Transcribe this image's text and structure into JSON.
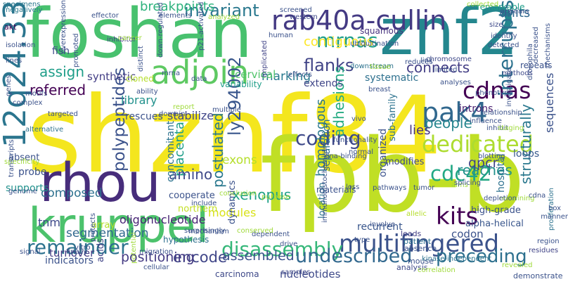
{
  "words": [
    {
      "text": "shznf84",
      "color": "#f4e61e",
      "rotated": false
    },
    {
      "text": "foshan",
      "color": "#48c16e",
      "rotated": false
    },
    {
      "text": "fpb-b",
      "color": "#c0df25",
      "rotated": false
    },
    {
      "text": "znf2",
      "color": "#24878e",
      "rotated": false
    },
    {
      "text": "kruppel",
      "color": "#4cc26c",
      "rotated": false
    },
    {
      "text": "rhou",
      "color": "#472d7b",
      "rotated": false
    },
    {
      "text": "12q24.33",
      "color": "#2b758e",
      "rotated": true
    },
    {
      "text": "adjoin",
      "color": "#5ec962",
      "rotated": false
    },
    {
      "text": "rab40a-cullin",
      "color": "#443a83",
      "rotated": false
    },
    {
      "text": "multifingered",
      "color": "#3b528b",
      "rotated": false
    },
    {
      "text": "pak4",
      "color": "#31688e",
      "rotated": false
    },
    {
      "text": "cdnas",
      "color": "#440154",
      "rotated": false
    },
    {
      "text": "interrupts",
      "color": "#2c728e",
      "rotated": true
    },
    {
      "text": "dedicated",
      "color": "#addc30",
      "rotated": false
    },
    {
      "text": "coding",
      "color": "#3e4989",
      "rotated": false
    },
    {
      "text": "disassembly",
      "color": "#35b779",
      "rotated": false
    },
    {
      "text": "undescribed",
      "color": "#31688e",
      "rotated": false
    },
    {
      "text": "remainder",
      "color": "#2c728e",
      "rotated": false
    },
    {
      "text": "cdc42",
      "color": "#22a884",
      "rotated": false
    },
    {
      "text": "invariant",
      "color": "#2a788e",
      "rotated": false
    },
    {
      "text": "mrnas",
      "color": "#1f9e89",
      "rotated": false
    },
    {
      "text": "flanks",
      "color": "#414487",
      "rotated": false
    },
    {
      "text": "breakpoints",
      "color": "#2db27d",
      "rotated": false
    },
    {
      "text": "contiguous",
      "color": "#fde725",
      "rotated": false
    },
    {
      "text": "ly294002",
      "color": "#39568c",
      "rotated": true
    },
    {
      "text": "postulated",
      "color": "#2a788e",
      "rotated": true
    },
    {
      "text": "placenta",
      "color": "#1f9e89",
      "rotated": true
    },
    {
      "text": "polypeptides",
      "color": "#3b528b",
      "rotated": true
    },
    {
      "text": "homologous",
      "color": "#2a788e",
      "rotated": true
    },
    {
      "text": "adhesions",
      "color": "#25ab82",
      "rotated": true
    },
    {
      "text": "structurally",
      "color": "#2a788e",
      "rotated": true
    },
    {
      "text": "amino",
      "color": "#3e4989",
      "rotated": false
    },
    {
      "text": "xenopus",
      "color": "#1fa187",
      "rotated": false
    },
    {
      "text": "exons",
      "color": "#b5de2b",
      "rotated": false
    },
    {
      "text": "kits",
      "color": "#440154",
      "rotated": false
    },
    {
      "text": "assign",
      "color": "#1f9e89",
      "rotated": false
    },
    {
      "text": "connects",
      "color": "#433e85",
      "rotated": false
    },
    {
      "text": "people",
      "color": "#25858e",
      "rotated": false
    },
    {
      "text": "reaches",
      "color": "#21918c",
      "rotated": false
    },
    {
      "text": "units",
      "color": "#31688e",
      "rotated": false
    },
    {
      "text": "tnm",
      "color": "#3e4989",
      "rotated": false
    },
    {
      "text": "encode",
      "color": "#404688",
      "rotated": false
    },
    {
      "text": "assembled",
      "color": "#3b528b",
      "rotated": false
    },
    {
      "text": "preceding",
      "color": "#2d708e",
      "rotated": false
    },
    {
      "text": "marking",
      "color": "#29798e",
      "rotated": false
    },
    {
      "text": "segmentation",
      "color": "#31688e",
      "rotated": false
    },
    {
      "text": "positioning",
      "color": "#443a83",
      "rotated": false
    },
    {
      "text": "composed",
      "color": "#2d708e",
      "rotated": false
    },
    {
      "text": "modules",
      "color": "#d8e219",
      "rotated": false
    },
    {
      "text": "qpcr",
      "color": "#414487",
      "rotated": false
    },
    {
      "text": "lies",
      "color": "#46327e",
      "rotated": false
    },
    {
      "text": "loops",
      "color": "#38598c",
      "rotated": false
    },
    {
      "text": "codon",
      "color": "#3b528b",
      "rotated": false
    },
    {
      "text": "hospital",
      "color": "#2d708e",
      "rotated": true
    },
    {
      "text": "cervical",
      "color": "#50c46a",
      "rotated": false
    },
    {
      "text": "referred",
      "color": "#440154",
      "rotated": false
    },
    {
      "text": "introns",
      "color": "#481f70",
      "rotated": false
    },
    {
      "text": "sequences",
      "color": "#3b528b",
      "rotated": true
    },
    {
      "text": "organized",
      "color": "#3b528b",
      "rotated": true
    },
    {
      "text": "separation",
      "color": "#2d708e",
      "rotated": true
    },
    {
      "text": "location",
      "color": "#2c728e",
      "rotated": true
    },
    {
      "text": "dynamics",
      "color": "#3b528b",
      "rotated": true
    },
    {
      "text": "library",
      "color": "#21918c",
      "rotated": false
    },
    {
      "text": "stabilize",
      "color": "#404688",
      "rotated": false
    },
    {
      "text": "extends",
      "color": "#404688",
      "rotated": false
    },
    {
      "text": "systematic",
      "color": "#2d708e",
      "rotated": false
    },
    {
      "text": "synthetic",
      "color": "#433e85",
      "rotated": false
    },
    {
      "text": "rescues",
      "color": "#3b528b",
      "rotated": false
    },
    {
      "text": "variability",
      "color": "#1f9e89",
      "rotated": false
    },
    {
      "text": "oligonucleotide",
      "color": "#482475",
      "rotated": false
    },
    {
      "text": "recurrent",
      "color": "#39568c",
      "rotated": false
    },
    {
      "text": "alpha-helical",
      "color": "#39568c",
      "rotated": false
    },
    {
      "text": "high-grade",
      "color": "#3b528b",
      "rotated": false
    },
    {
      "text": "modifies",
      "color": "#3e4989",
      "rotated": false
    },
    {
      "text": "nucleotides",
      "color": "#3e4989",
      "rotated": false
    },
    {
      "text": "turnover",
      "color": "#443a83",
      "rotated": false
    },
    {
      "text": "indicators",
      "color": "#3b528b",
      "rotated": false
    },
    {
      "text": "probe",
      "color": "#3b528b",
      "rotated": false
    },
    {
      "text": "fish",
      "color": "#3e4989",
      "rotated": false
    },
    {
      "text": "absent",
      "color": "#3b528b",
      "rotated": false
    },
    {
      "text": "supports",
      "color": "#21918c",
      "rotated": false
    },
    {
      "text": "remarkable",
      "color": "#1f9e89",
      "rotated": false
    },
    {
      "text": "repeats",
      "color": "#3b528b",
      "rotated": false
    },
    {
      "text": "squamous",
      "color": "#46327e",
      "rotated": false
    },
    {
      "text": "materials",
      "color": "#3b528b",
      "rotated": false
    },
    {
      "text": "cooperate",
      "color": "#3b528b",
      "rotated": false
    },
    {
      "text": "concomitant",
      "color": "#2c728e",
      "rotated": true
    },
    {
      "text": "sub-family",
      "color": "#2c728e",
      "rotated": true
    },
    {
      "text": "northern",
      "color": "#c2df23",
      "rotated": false
    },
    {
      "text": "cloned",
      "color": "#b5de2b",
      "rotated": false
    },
    {
      "text": "acids",
      "color": "#414487",
      "rotated": true
    },
    {
      "text": "array",
      "color": "#b5de2b",
      "rotated": false
    },
    {
      "text": "hypothesis",
      "color": "#2d708e",
      "rotated": false
    },
    {
      "text": "carcinoma",
      "color": "#3e4989",
      "rotated": false
    },
    {
      "text": "samples",
      "color": "#3e4989",
      "rotated": false
    },
    {
      "text": "demonstrate",
      "color": "#3b528b",
      "rotated": false
    },
    {
      "text": "residues",
      "color": "#414487",
      "rotated": false
    },
    {
      "text": "region",
      "color": "#3b528b",
      "rotated": false
    },
    {
      "text": "analysis",
      "color": "#3e4989",
      "rotated": false
    },
    {
      "text": "patient",
      "color": "#2d708e",
      "rotated": false
    },
    {
      "text": "mouse",
      "color": "#3b528b",
      "rotated": false
    },
    {
      "text": "leads",
      "color": "#433e85",
      "rotated": false
    },
    {
      "text": "absence",
      "color": "#3b528b",
      "rotated": false
    },
    {
      "text": "allelic",
      "color": "#b5de2b",
      "rotated": false
    },
    {
      "text": "kinase-independent",
      "color": "#2c728e",
      "rotated": false
    },
    {
      "text": "correlation",
      "color": "#9fda3a",
      "rotated": false
    },
    {
      "text": "proliferation",
      "color": "#2c728e",
      "rotated": true
    },
    {
      "text": "akt",
      "color": "#440154",
      "rotated": false
    },
    {
      "text": "inhibitor",
      "color": "#433e85",
      "rotated": false
    },
    {
      "text": "isolation",
      "color": "#3b528b",
      "rotated": false
    },
    {
      "text": "lines",
      "color": "#3b528b",
      "rotated": false
    },
    {
      "text": "specimens",
      "color": "#2a788e",
      "rotated": false
    },
    {
      "text": "negatively",
      "color": "#29798e",
      "rotated": false
    },
    {
      "text": "effector",
      "color": "#3b528b",
      "rotated": false
    },
    {
      "text": "elements",
      "color": "#3b528b",
      "rotated": false
    },
    {
      "text": "screened",
      "color": "#3b528b",
      "rotated": false
    },
    {
      "text": "western",
      "color": "#3e4989",
      "rotated": false
    },
    {
      "text": "human",
      "color": "#3b528b",
      "rotated": false
    },
    {
      "text": "implicated",
      "color": "#414487",
      "rotated": true
    },
    {
      "text": "ubiquitination",
      "color": "#3b528b",
      "rotated": false
    },
    {
      "text": "downstream",
      "color": "#2c728e",
      "rotated": false
    },
    {
      "text": "tissue",
      "color": "#9fda3a",
      "rotated": false
    },
    {
      "text": "reduces",
      "color": "#3b528b",
      "rotated": false
    },
    {
      "text": "size",
      "color": "#3e4989",
      "rotated": false
    },
    {
      "text": "identify",
      "color": "#3b528b",
      "rotated": false
    },
    {
      "text": "detected",
      "color": "#3b528b",
      "rotated": false
    },
    {
      "text": "appears",
      "color": "#3b528b",
      "rotated": false
    },
    {
      "text": "chromosome",
      "color": "#3e4989",
      "rotated": false
    },
    {
      "text": "decreased",
      "color": "#3b528b",
      "rotated": true
    },
    {
      "text": "drosophila",
      "color": "#3b528b",
      "rotated": true
    },
    {
      "text": "methods",
      "color": "#3e4989",
      "rotated": false
    },
    {
      "text": "mechanisms",
      "color": "#3b528b",
      "rotated": true
    },
    {
      "text": "link",
      "color": "#3b528b",
      "rotated": false
    },
    {
      "text": "genes",
      "color": "#3b528b",
      "rotated": true
    },
    {
      "text": "motifs",
      "color": "#3b528b",
      "rotated": false
    },
    {
      "text": "complex",
      "color": "#3b528b",
      "rotated": false
    },
    {
      "text": "targeted",
      "color": "#3b528b",
      "rotated": false
    },
    {
      "text": "alternative",
      "color": "#2c728e",
      "rotated": false
    },
    {
      "text": "specificity",
      "color": "#9fda3a",
      "rotated": false
    },
    {
      "text": "transcripts",
      "color": "#3b528b",
      "rotated": true
    },
    {
      "text": "genome",
      "color": "#3b528b",
      "rotated": false
    },
    {
      "text": "signal",
      "color": "#3b528b",
      "rotated": false
    },
    {
      "text": "finally",
      "color": "#3b528b",
      "rotated": false
    },
    {
      "text": "vitro",
      "color": "#3b528b",
      "rotated": false
    },
    {
      "text": "protects",
      "color": "#3b528b",
      "rotated": true
    },
    {
      "text": "potential",
      "color": "#9fda3a",
      "rotated": true
    },
    {
      "text": "cellular",
      "color": "#3b528b",
      "rotated": false
    },
    {
      "text": "migration",
      "color": "#3b528b",
      "rotated": false
    },
    {
      "text": "mechanism",
      "color": "#3b528b",
      "rotated": false
    },
    {
      "text": "include",
      "color": "#3b528b",
      "rotated": false
    },
    {
      "text": "surprisingly",
      "color": "#3b528b",
      "rotated": false
    },
    {
      "text": "dependent",
      "color": "#3b528b",
      "rotated": false
    },
    {
      "text": "conserved",
      "color": "#9fda3a",
      "rotated": false
    },
    {
      "text": "drive",
      "color": "#3b528b",
      "rotated": false
    },
    {
      "text": "purpose",
      "color": "#9fda3a",
      "rotated": false
    },
    {
      "text": "conclusion",
      "color": "#9fda3a",
      "rotated": false
    },
    {
      "text": "immunohistochemistry",
      "color": "#3b528b",
      "rotated": true
    },
    {
      "text": "dna-binding",
      "color": "#3b528b",
      "rotated": false
    },
    {
      "text": "functionality",
      "color": "#3b528b",
      "rotated": false
    },
    {
      "text": "loss",
      "color": "#3b528b",
      "rotated": false
    },
    {
      "text": "normal",
      "color": "#3b528b",
      "rotated": false
    },
    {
      "text": "vivo",
      "color": "#3b528b",
      "rotated": false
    },
    {
      "text": "pathways",
      "color": "#3b528b",
      "rotated": false
    },
    {
      "text": "breast",
      "color": "#3b528b",
      "rotated": false
    },
    {
      "text": "tumor",
      "color": "#3b528b",
      "rotated": false
    },
    {
      "text": "involve",
      "color": "#3b528b",
      "rotated": false
    },
    {
      "text": "type",
      "color": "#3b528b",
      "rotated": false
    },
    {
      "text": "remaining",
      "color": "#9fda3a",
      "rotated": false
    },
    {
      "text": "depletion",
      "color": "#3b528b",
      "rotated": false
    },
    {
      "text": "cdna",
      "color": "#3b528b",
      "rotated": false
    },
    {
      "text": "box",
      "color": "#3b528b",
      "rotated": false
    },
    {
      "text": "manner",
      "color": "#3b528b",
      "rotated": false
    },
    {
      "text": "revealed",
      "color": "#9fda3a",
      "rotated": false
    },
    {
      "text": "aims",
      "color": "#9fda3a",
      "rotated": false
    },
    {
      "text": "blotting",
      "color": "#3b528b",
      "rotated": false
    },
    {
      "text": "splicing",
      "color": "#3b528b",
      "rotated": false
    },
    {
      "text": "influence",
      "color": "#3b528b",
      "rotated": false
    },
    {
      "text": "inhibit",
      "color": "#3b528b",
      "rotated": false
    },
    {
      "text": "staging",
      "color": "#9fda3a",
      "rotated": false
    },
    {
      "text": "investigate",
      "color": "#3b528b",
      "rotated": true
    },
    {
      "text": "relationship",
      "color": "#3b528b",
      "rotated": false
    },
    {
      "text": "phenotype",
      "color": "#3b528b",
      "rotated": false
    },
    {
      "text": "collected",
      "color": "#9fda3a",
      "rotated": false
    },
    {
      "text": "distinct",
      "color": "#3b528b",
      "rotated": true
    },
    {
      "text": "down-regulated",
      "color": "#3b528b",
      "rotated": true
    },
    {
      "text": "p21-activated",
      "color": "#3b528b",
      "rotated": true
    },
    {
      "text": "analyzed",
      "color": "#9fda3a",
      "rotated": false
    },
    {
      "text": "overexpression",
      "color": "#3b528b",
      "rotated": true
    },
    {
      "text": "cancer",
      "color": "#9fda3a",
      "rotated": false
    },
    {
      "text": "ability",
      "color": "#3b528b",
      "rotated": false
    },
    {
      "text": "domain",
      "color": "#3b528b",
      "rotated": false
    },
    {
      "text": "report",
      "color": "#9fda3a",
      "rotated": false
    },
    {
      "text": "data",
      "color": "#3b528b",
      "rotated": false
    },
    {
      "text": "mrna",
      "color": "#3b528b",
      "rotated": false
    },
    {
      "text": "effects",
      "color": "#3b528b",
      "rotated": false
    },
    {
      "text": "limited",
      "color": "#3b528b",
      "rotated": false
    },
    {
      "text": "analyses",
      "color": "#3b528b",
      "rotated": false
    },
    {
      "text": "promoted",
      "color": "#3b528b",
      "rotated": true
    },
    {
      "text": "multiple",
      "color": "#3b528b",
      "rotated": false
    }
  ]
}
